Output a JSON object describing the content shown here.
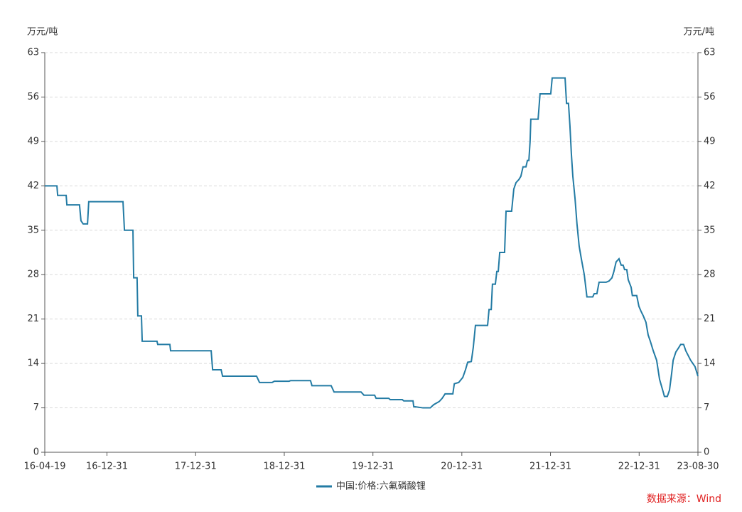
{
  "chart_data": {
    "type": "line",
    "ylabel": "万元/吨",
    "y2label": "万元/吨",
    "source": "数据来源：Wind",
    "xlim": [
      "2016-04-19",
      "2023-08-30"
    ],
    "xticks": [
      {
        "value": "2016-04-19",
        "label": "16-04-19"
      },
      {
        "value": "2016-12-31",
        "label": "16-12-31"
      },
      {
        "value": "2017-12-31",
        "label": "17-12-31"
      },
      {
        "value": "2018-12-31",
        "label": "18-12-31"
      },
      {
        "value": "2019-12-31",
        "label": "19-12-31"
      },
      {
        "value": "2020-12-31",
        "label": "20-12-31"
      },
      {
        "value": "2021-12-31",
        "label": "21-12-31"
      },
      {
        "value": "2022-12-31",
        "label": "22-12-31"
      },
      {
        "value": "2023-08-30",
        "label": "23-08-30"
      }
    ],
    "ylim": [
      0,
      63
    ],
    "yticks": [
      0,
      7,
      14,
      21,
      28,
      35,
      42,
      49,
      56,
      63
    ],
    "y2lim": [
      0,
      63
    ],
    "y2ticks": [
      0,
      7,
      14,
      21,
      28,
      35,
      42,
      49,
      56,
      63
    ],
    "grid": true,
    "legend": "bottom",
    "x": [
      "2016-04-19",
      "2016-06-08",
      "2016-06-11",
      "2016-07-16",
      "2016-07-19",
      "2016-09-09",
      "2016-09-15",
      "2016-09-24",
      "2016-10-12",
      "2016-10-17",
      "2017-03-07",
      "2017-03-13",
      "2017-04-17",
      "2017-04-20",
      "2017-05-04",
      "2017-05-07",
      "2017-05-22",
      "2017-05-25",
      "2017-07-25",
      "2017-07-28",
      "2017-09-16",
      "2017-09-19",
      "2018-03-05",
      "2018-03-11",
      "2018-04-15",
      "2018-04-21",
      "2018-09-08",
      "2018-09-20",
      "2018-11-11",
      "2018-11-20",
      "2019-01-20",
      "2019-01-26",
      "2019-04-18",
      "2019-04-24",
      "2019-07-12",
      "2019-07-24",
      "2019-11-12",
      "2019-11-24",
      "2020-01-07",
      "2020-01-13",
      "2020-03-05",
      "2020-03-11",
      "2020-04-30",
      "2020-05-06",
      "2020-06-13",
      "2020-06-16",
      "2020-07-24",
      "2020-08-23",
      "2020-09-06",
      "2020-09-29",
      "2020-10-11",
      "2020-10-23",
      "2020-11-24",
      "2020-11-30",
      "2020-12-18",
      "2021-01-04",
      "2021-01-15",
      "2021-01-24",
      "2021-02-08",
      "2021-02-16",
      "2021-02-25",
      "2021-04-16",
      "2021-04-22",
      "2021-05-01",
      "2021-05-06",
      "2021-05-18",
      "2021-05-24",
      "2021-05-30",
      "2021-06-05",
      "2021-06-25",
      "2021-07-01",
      "2021-07-24",
      "2021-08-02",
      "2021-08-11",
      "2021-08-23",
      "2021-08-31",
      "2021-09-09",
      "2021-09-21",
      "2021-09-27",
      "2021-10-03",
      "2021-10-08",
      "2021-10-11",
      "2021-11-10",
      "2021-11-18",
      "2022-01-01",
      "2022-01-07",
      "2022-03-01",
      "2022-03-07",
      "2022-03-15",
      "2022-03-21",
      "2022-03-27",
      "2022-04-02",
      "2022-04-11",
      "2022-04-19",
      "2022-04-28",
      "2022-05-07",
      "2022-05-19",
      "2022-05-30",
      "2022-06-23",
      "2022-06-29",
      "2022-07-10",
      "2022-07-19",
      "2022-08-17",
      "2022-08-29",
      "2022-09-10",
      "2022-09-18",
      "2022-09-27",
      "2022-10-09",
      "2022-10-18",
      "2022-10-26",
      "2022-11-01",
      "2022-11-10",
      "2022-11-16",
      "2022-11-28",
      "2022-12-03",
      "2022-12-21",
      "2022-12-30",
      "2023-01-08",
      "2023-01-17",
      "2023-01-28",
      "2023-02-06",
      "2023-02-15",
      "2023-02-27",
      "2023-03-13",
      "2023-03-25",
      "2023-04-09",
      "2023-04-14",
      "2023-04-26",
      "2023-05-05",
      "2023-05-14",
      "2023-05-20",
      "2023-05-31",
      "2023-06-12",
      "2023-06-20",
      "2023-07-02",
      "2023-07-11",
      "2023-07-31",
      "2023-08-18",
      "2023-08-30"
    ],
    "series": [
      {
        "name": "中国:价格:六氟磷酸锂",
        "color": "#237ba4",
        "values": [
          42,
          42,
          40.5,
          40.5,
          39,
          39,
          36.5,
          36,
          36,
          39.5,
          39.5,
          35,
          35,
          27.5,
          27.5,
          21.5,
          21.5,
          17.5,
          17.5,
          17,
          17,
          16,
          16,
          13,
          13,
          12,
          12,
          11,
          11,
          11.2,
          11.2,
          11.3,
          11.3,
          10.5,
          10.5,
          9.5,
          9.5,
          9,
          9,
          8.5,
          8.5,
          8.3,
          8.3,
          8.1,
          8.1,
          7.2,
          7,
          7,
          7.5,
          8,
          8.5,
          9.2,
          9.2,
          10.8,
          11,
          11.8,
          13,
          14.2,
          14.3,
          16.5,
          20,
          20,
          22.5,
          22.5,
          26.5,
          26.5,
          28.5,
          28.5,
          31.5,
          31.5,
          38,
          38,
          41.5,
          42.5,
          43,
          43.5,
          45,
          45,
          46,
          46,
          49,
          52.5,
          52.5,
          56.5,
          56.5,
          59,
          59,
          55,
          55,
          51.5,
          47,
          43.5,
          40,
          36,
          32.5,
          30.5,
          28,
          24.5,
          24.5,
          25,
          25,
          26.8,
          26.8,
          27,
          27.5,
          28.5,
          30,
          30.5,
          29.5,
          29.5,
          28.8,
          28.8,
          27.2,
          26,
          24.7,
          24.7,
          23,
          22.2,
          21.5,
          20.5,
          18.5,
          17.5,
          16,
          14.5,
          11.5,
          9.5,
          8.8,
          8.8,
          9.8,
          12.5,
          14.5,
          15.8,
          16.5,
          17,
          17,
          16,
          14.5,
          13.5,
          12
        ]
      }
    ]
  }
}
